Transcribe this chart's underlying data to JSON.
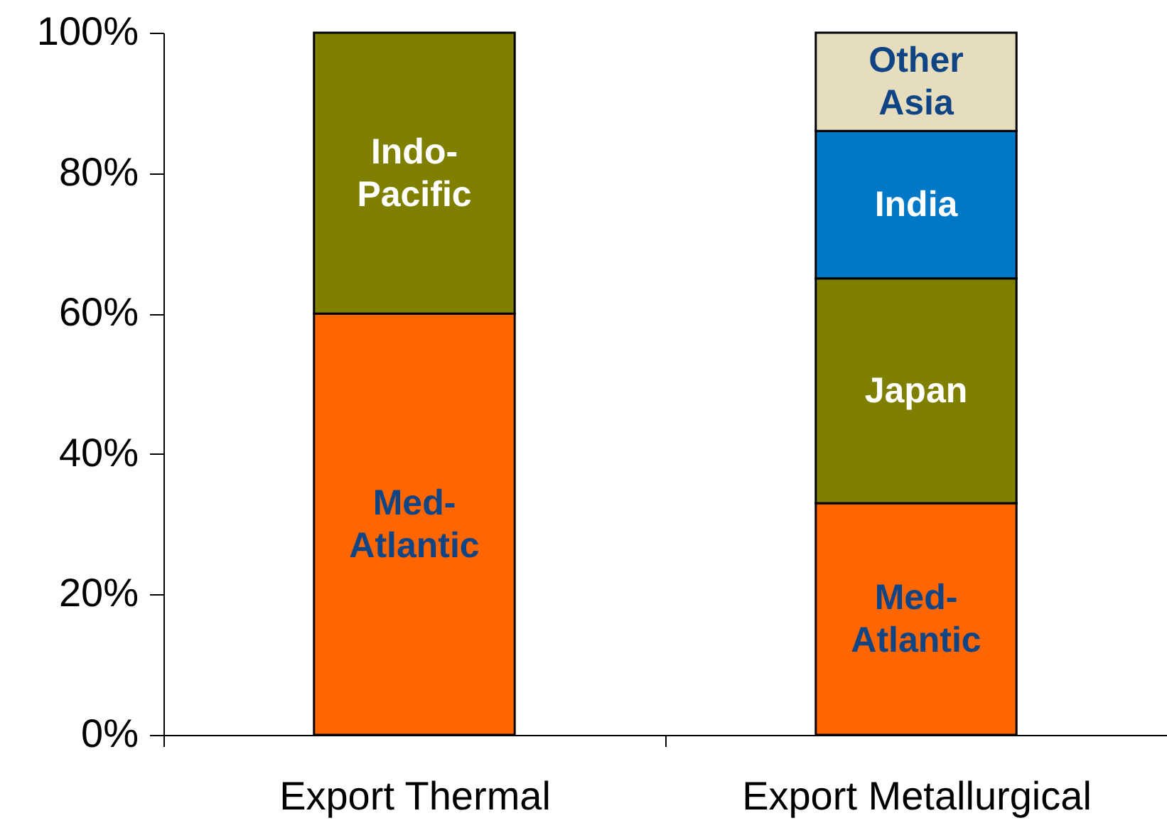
{
  "chart_data": {
    "type": "bar",
    "stacked": true,
    "categories": [
      "Export Thermal",
      "Export Metallurgical"
    ],
    "series": [
      {
        "name": "Med-Atlantic",
        "color": "#ff6600",
        "values": [
          60,
          33
        ]
      },
      {
        "name": "Indo-Pacific",
        "color": "#808000",
        "values": [
          40,
          null
        ]
      },
      {
        "name": "Japan",
        "color": "#808000",
        "values": [
          null,
          32
        ]
      },
      {
        "name": "India",
        "color": "#0078c8",
        "values": [
          null,
          21
        ]
      },
      {
        "name": "Other Asia",
        "color": "#e6dcbe",
        "values": [
          null,
          14
        ]
      }
    ],
    "ylim": [
      0,
      100
    ],
    "yticks": [
      {
        "value": 0,
        "label": "0%"
      },
      {
        "value": 20,
        "label": "20%"
      },
      {
        "value": 40,
        "label": "40%"
      },
      {
        "value": 60,
        "label": "60%"
      },
      {
        "value": 80,
        "label": "80%"
      },
      {
        "value": 100,
        "label": "100%"
      }
    ]
  }
}
